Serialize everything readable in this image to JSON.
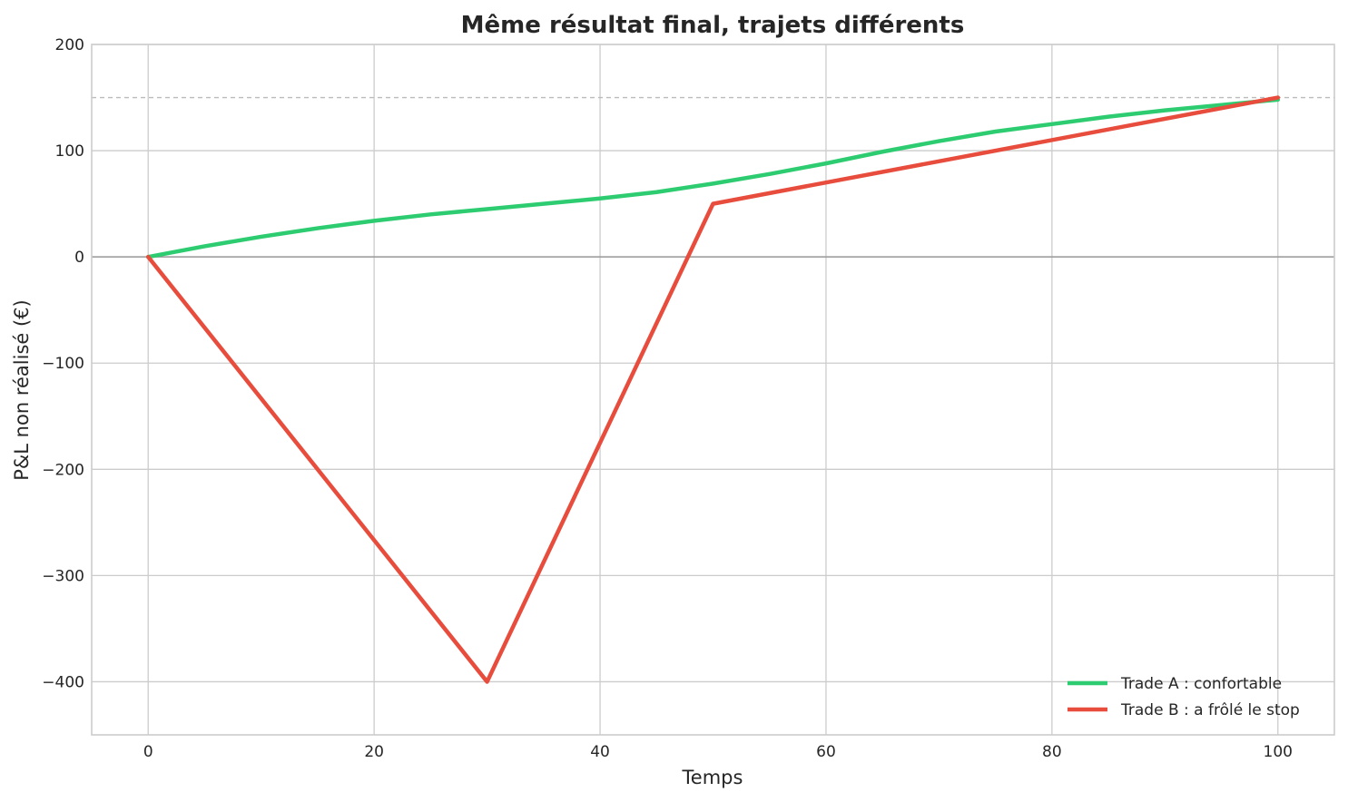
{
  "chart_data": {
    "type": "line",
    "title": "Même résultat final, trajets différents",
    "xlabel": "Temps",
    "ylabel": "P&L non réalisé (€)",
    "xlim": [
      -5,
      105
    ],
    "ylim": [
      -450,
      200
    ],
    "xticks": [
      0,
      20,
      40,
      60,
      80,
      100
    ],
    "yticks": [
      -400,
      -300,
      -200,
      -100,
      0,
      100,
      200
    ],
    "grid": true,
    "legend_position": "bottom-right",
    "reference_lines": [
      {
        "axis": "y",
        "value": 150,
        "style": "dashed",
        "color": "#bbbbbb"
      },
      {
        "axis": "y",
        "value": 0,
        "style": "solid",
        "color": "#999999"
      }
    ],
    "series": [
      {
        "name": "Trade A : confortable",
        "color": "#2ecc71",
        "x": [
          0,
          5,
          10,
          15,
          20,
          25,
          30,
          35,
          40,
          45,
          50,
          55,
          60,
          65,
          70,
          75,
          80,
          85,
          90,
          95,
          100
        ],
        "y": [
          0,
          10,
          19,
          27,
          34,
          40,
          45,
          50,
          55,
          61,
          69,
          78,
          88,
          99,
          109,
          118,
          125,
          132,
          138,
          143,
          148
        ]
      },
      {
        "name": "Trade B : a frôlé le stop",
        "color": "#e74c3c",
        "x": [
          0,
          30,
          50,
          100
        ],
        "y": [
          0,
          -400,
          50,
          150
        ]
      }
    ]
  }
}
